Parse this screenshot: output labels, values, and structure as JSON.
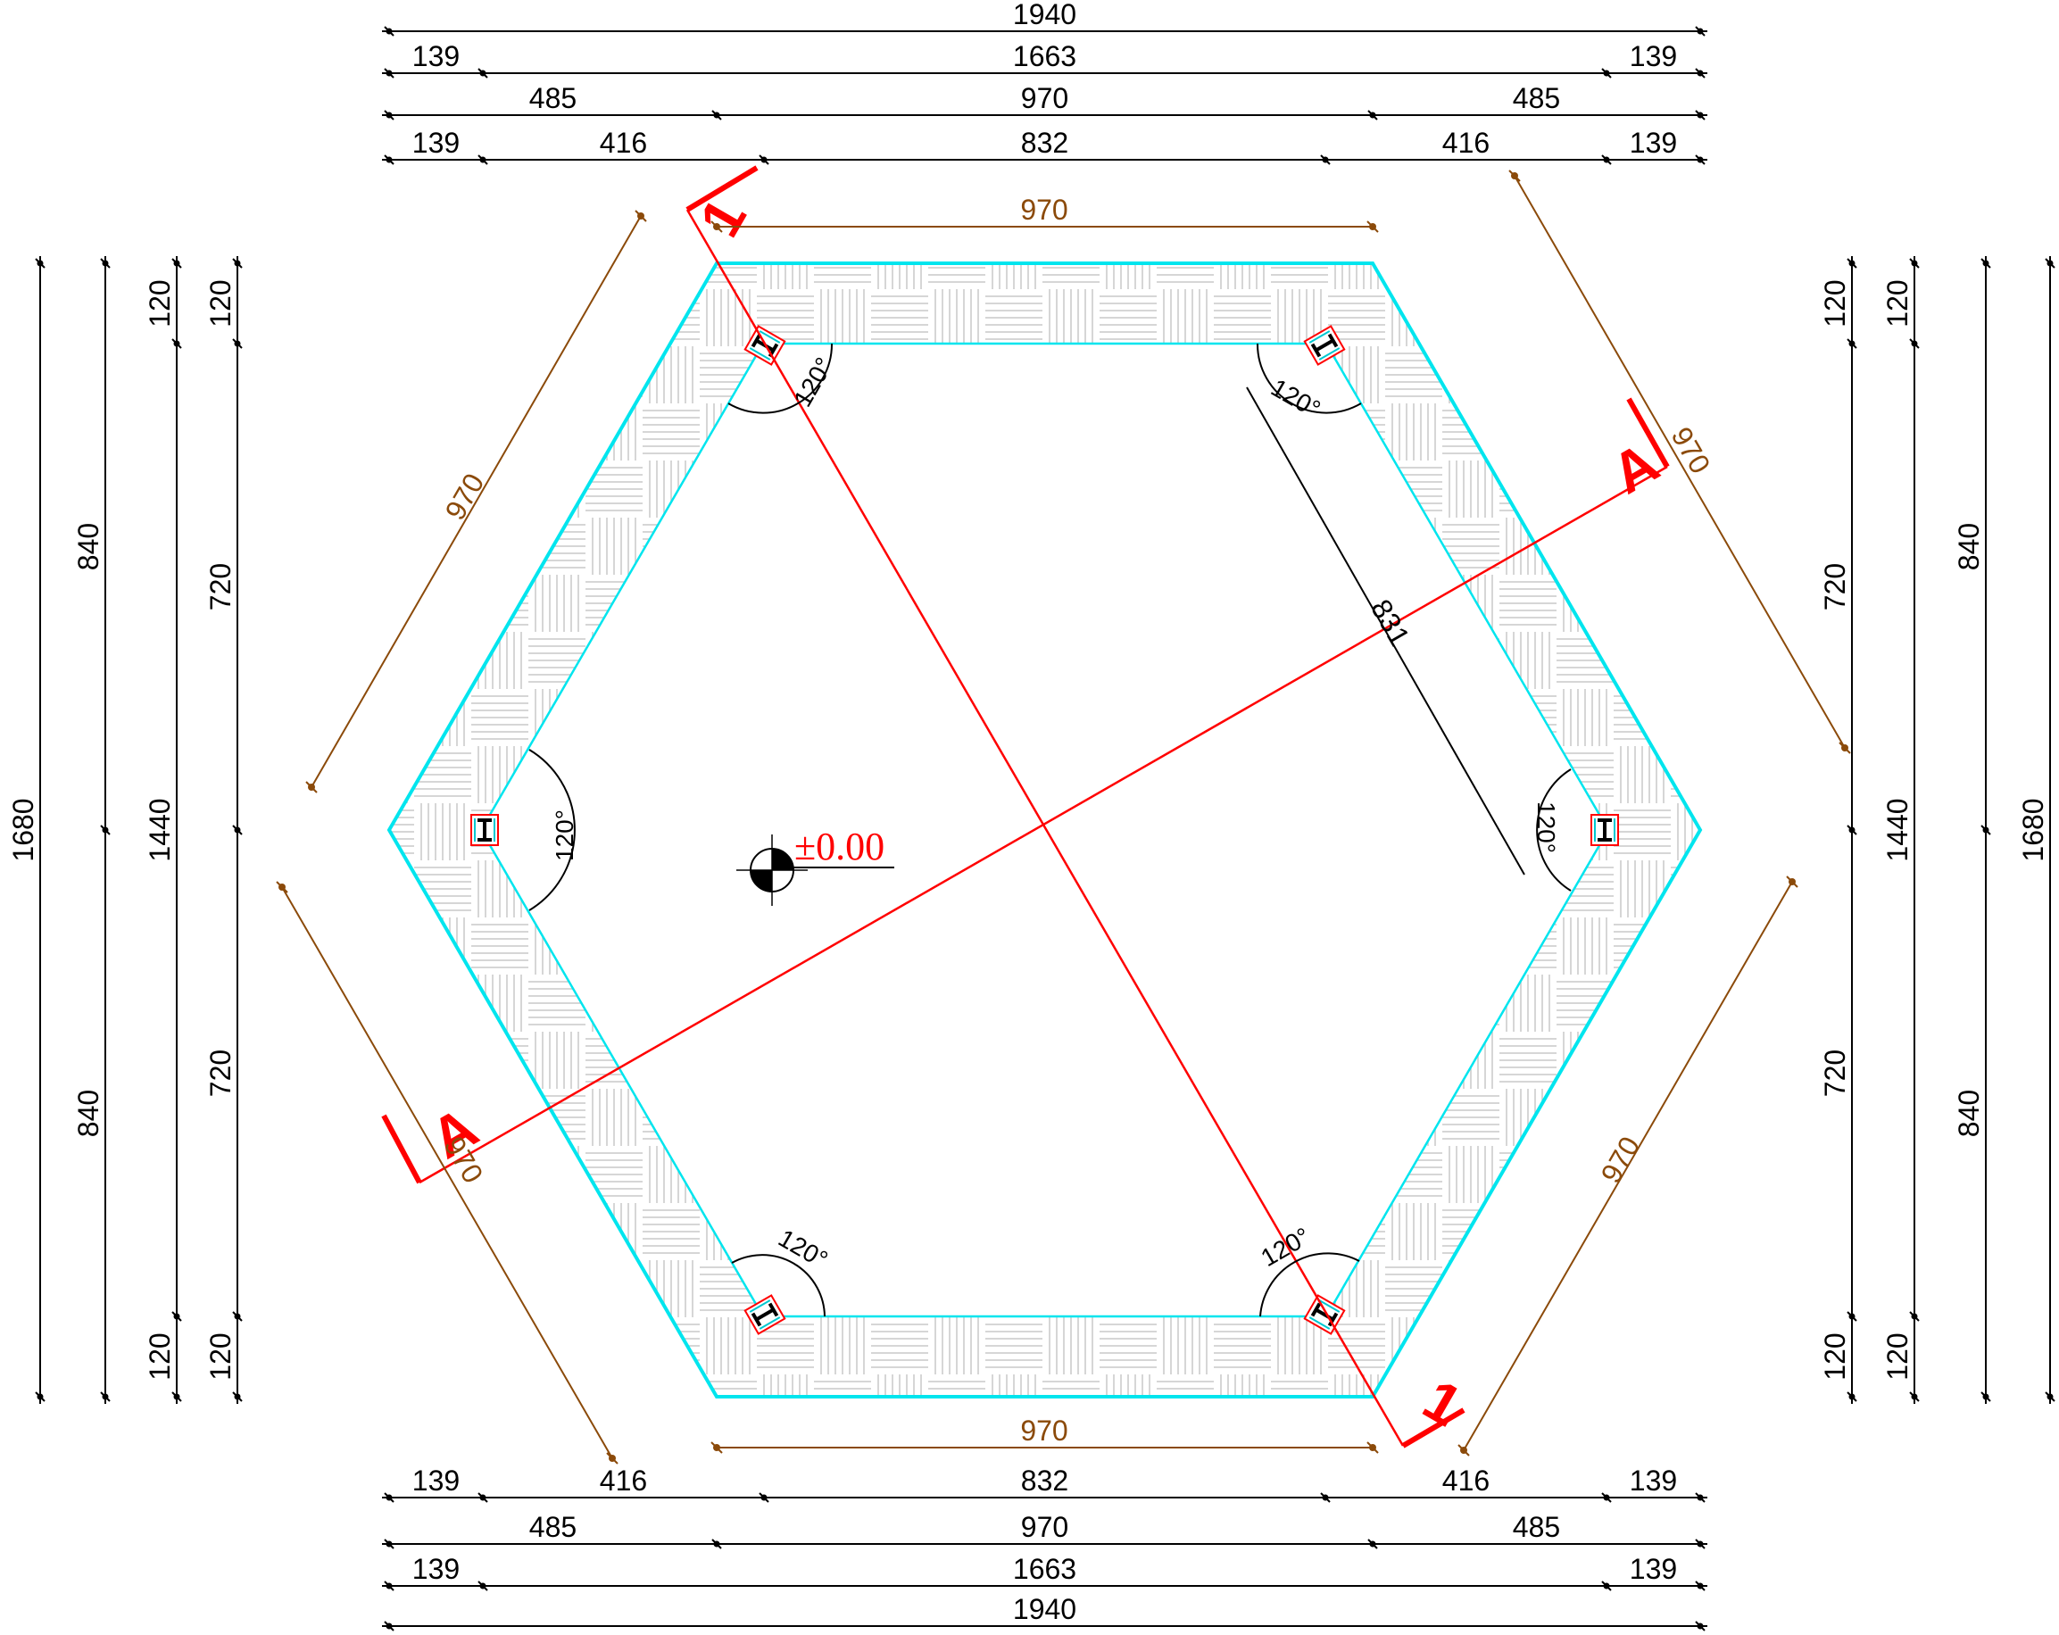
{
  "dims": {
    "top": {
      "row1": [
        "1940"
      ],
      "row2": [
        "139",
        "1663",
        "139"
      ],
      "row3": [
        "485",
        "970",
        "485"
      ],
      "row4": [
        "139",
        "416",
        "832",
        "416",
        "139"
      ]
    },
    "bottom": {
      "row1": [
        "139",
        "416",
        "832",
        "416",
        "139"
      ],
      "row2": [
        "485",
        "970",
        "485"
      ],
      "row3": [
        "139",
        "1663",
        "139"
      ],
      "row4": [
        "1940"
      ]
    },
    "left": {
      "col1": [
        "1680"
      ],
      "col2": [
        "840",
        "840"
      ],
      "col3": [
        "120",
        "1440",
        "120"
      ],
      "col4": [
        "120",
        "720",
        "720",
        "120"
      ]
    },
    "right": {
      "col1": [
        "120",
        "720",
        "720",
        "120"
      ],
      "col2": [
        "120",
        "1440",
        "120"
      ],
      "col3": [
        "840",
        "840"
      ],
      "col4": [
        "1680"
      ]
    },
    "edges": {
      "top": "970",
      "bottom": "970",
      "upper_left": "970",
      "lower_left": "970",
      "upper_right": "970",
      "lower_right": "970"
    },
    "inner": "831"
  },
  "angles": [
    "120°",
    "120°",
    "120°",
    "120°",
    "120°",
    "120°"
  ],
  "sections": {
    "one": "1",
    "a": "A"
  },
  "level": "±0.00",
  "colors": {
    "outline": "#00E5EE",
    "section": "#FF0000",
    "dimension": "#000000",
    "edge_dimension": "#8B4A0A",
    "hatch": "#C8C8C8"
  }
}
